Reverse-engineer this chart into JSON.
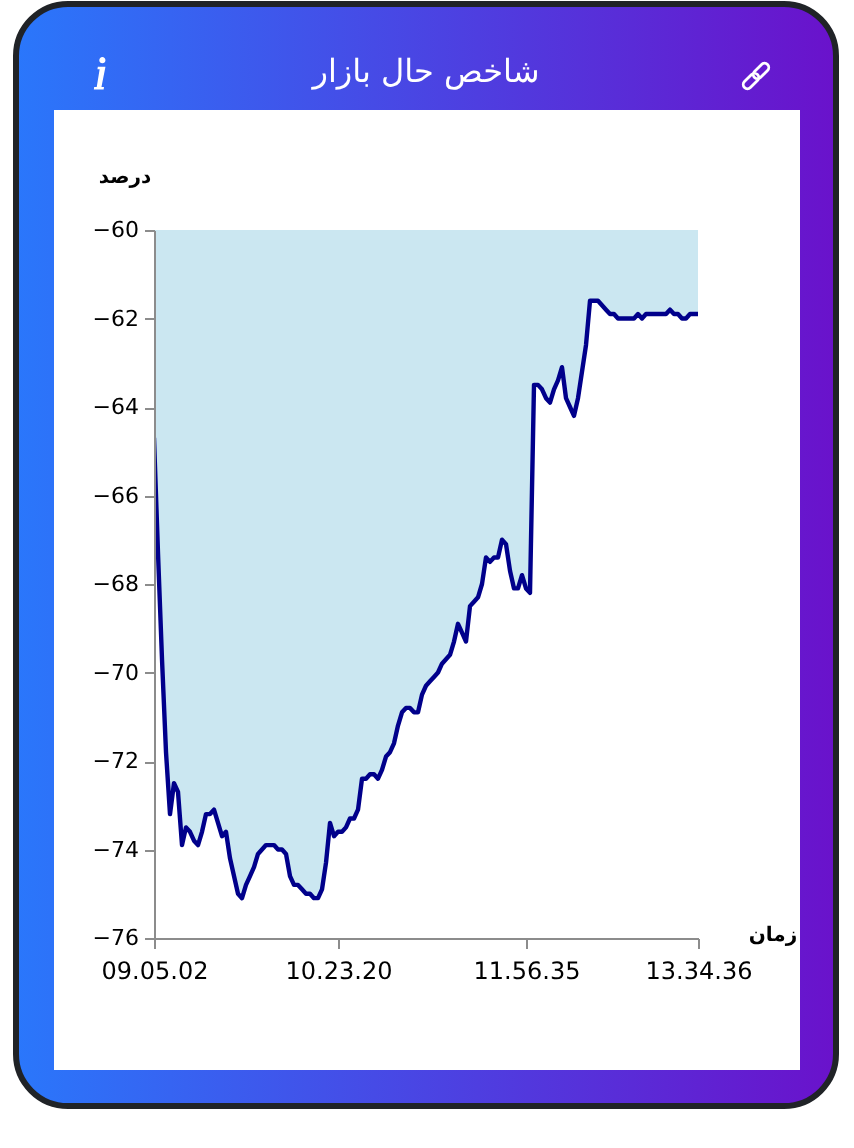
{
  "chart_data": {
    "type": "line",
    "title": "شاخص حال بازار",
    "xlabel": "زمان",
    "ylabel": "درصد",
    "categories": [
      "09.05.02",
      null,
      null,
      null,
      null,
      null,
      null,
      null,
      null,
      null,
      null,
      null,
      null,
      null,
      null,
      null,
      null,
      null,
      null,
      null,
      null,
      null,
      null,
      null,
      null,
      null,
      null,
      null,
      null,
      null,
      null,
      null,
      null,
      null,
      null,
      null,
      null,
      null,
      null,
      null,
      null,
      null,
      null,
      null,
      null,
      null,
      "10.23.20",
      null,
      null,
      null,
      null,
      null,
      null,
      null,
      null,
      null,
      null,
      null,
      null,
      null,
      null,
      null,
      null,
      null,
      null,
      null,
      null,
      null,
      null,
      null,
      null,
      null,
      null,
      null,
      null,
      null,
      null,
      null,
      null,
      null,
      null,
      null,
      null,
      null,
      null,
      null,
      null,
      null,
      null,
      null,
      null,
      null,
      null,
      "11.56.35",
      null,
      null,
      null,
      null,
      null,
      null,
      null,
      null,
      null,
      null,
      null,
      null,
      null,
      null,
      null,
      null,
      null,
      null,
      null,
      null,
      null,
      null,
      null,
      null,
      null,
      null,
      null,
      null,
      null,
      null,
      null,
      null,
      null,
      null,
      null,
      null,
      null,
      null,
      null,
      null,
      null,
      null,
      "13.34.36"
    ],
    "series": [
      {
        "color": "#00008b",
        "values": [
          -64.7,
          -67.3,
          -69.7,
          -71.8,
          -73.2,
          -72.5,
          -72.7,
          -73.9,
          -73.5,
          -73.6,
          -73.8,
          -73.9,
          -73.6,
          -73.2,
          -73.2,
          -73.1,
          -73.4,
          -73.7,
          -73.6,
          -74.2,
          -74.6,
          -75.0,
          -75.1,
          -74.8,
          -74.6,
          -74.4,
          -74.1,
          -74.0,
          -73.9,
          -73.9,
          -73.9,
          -74.0,
          -74.0,
          -74.1,
          -74.6,
          -74.8,
          -74.8,
          -74.9,
          -75.0,
          -75.0,
          -75.1,
          -75.1,
          -74.9,
          -74.3,
          -73.4,
          -73.7,
          -73.6,
          -73.6,
          -73.5,
          -73.3,
          -73.3,
          -73.1,
          -72.4,
          -72.4,
          -72.3,
          -72.3,
          -72.4,
          -72.2,
          -71.9,
          -71.8,
          -71.6,
          -71.2,
          -70.9,
          -70.8,
          -70.8,
          -70.9,
          -70.9,
          -70.5,
          -70.3,
          -70.2,
          -70.1,
          -70.0,
          -69.8,
          -69.7,
          -69.6,
          -69.3,
          -68.9,
          -69.1,
          -69.3,
          -68.5,
          -68.4,
          -68.3,
          -68.0,
          -67.4,
          -67.5,
          -67.4,
          -67.4,
          -67.0,
          -67.1,
          -67.7,
          -68.1,
          -68.1,
          -67.8,
          -68.1,
          -68.2,
          -63.5,
          -63.5,
          -63.6,
          -63.8,
          -63.9,
          -63.6,
          -63.4,
          -63.1,
          -63.8,
          -64.0,
          -64.2,
          -63.8,
          -63.2,
          -62.6,
          -61.6,
          -61.6,
          -61.6,
          -61.7,
          -61.8,
          -61.9,
          -61.9,
          -62.0,
          -62.0,
          -62.0,
          -62.0,
          -62.0,
          -61.9,
          -62.0,
          -61.9,
          -61.9,
          -61.9,
          -61.9,
          -61.9,
          -61.9,
          -61.8,
          -61.9,
          -61.9,
          -62.0,
          -62.0,
          -61.9,
          -61.9,
          -61.9
        ],
        "lower": [
          -64.7,
          -67.3,
          -69.7,
          -71.8,
          -73.2,
          -72.5,
          -72.7,
          -73.9,
          -73.5,
          -73.6,
          -73.8,
          -73.9,
          -73.6,
          -73.2,
          -73.2,
          -73.1,
          -73.4,
          -73.7,
          -73.6,
          -74.2,
          -74.6,
          -75.0,
          -75.1,
          -74.8,
          -74.6,
          -74.4,
          -74.1,
          -74.0,
          -73.9,
          -73.9,
          -73.9,
          -74.0,
          -74.0,
          -74.1,
          -74.6,
          -74.8,
          -74.8,
          -74.9,
          -75.0,
          -75.0,
          -75.1,
          -75.1,
          -74.9,
          -74.3,
          -73.4,
          -73.7,
          -73.6,
          -73.6,
          -73.5,
          -73.3,
          -73.3,
          -73.1,
          -72.4,
          -72.4,
          -72.3,
          -72.3,
          -72.4,
          -72.2,
          -71.9,
          -71.8,
          -71.6,
          -71.2,
          -70.9,
          -70.8,
          -70.8,
          -70.9,
          -70.9,
          -70.5,
          -70.3,
          -70.2,
          -70.1,
          -70.0,
          -69.8,
          -69.7,
          -69.6,
          -69.3,
          -68.9,
          -69.1,
          -69.3,
          -68.5,
          -68.4,
          -68.3,
          -68.0,
          -67.4,
          -67.5,
          -67.4,
          -67.4,
          -67.0,
          -67.1,
          -67.7,
          -68.1,
          -68.1,
          -67.8,
          -68.1,
          -68.2,
          -63.5,
          -63.5,
          -63.6,
          -63.8,
          -63.9,
          -63.6,
          -63.4,
          -63.1,
          -63.8,
          -64.0,
          -64.2,
          -63.8,
          -63.2,
          -62.6,
          -61.6,
          -61.6,
          -61.6,
          -61.7,
          -61.8,
          -61.9,
          -61.9,
          -62.0,
          -62.0,
          -62.0,
          -62.0,
          -62.0,
          -61.9,
          -62.0,
          -61.9,
          -61.9,
          -61.9,
          -61.9,
          -61.9,
          -61.9,
          -61.8,
          -61.9,
          -61.9,
          -62.0,
          -62.0,
          -61.9,
          -61.9,
          -61.9
        ],
        "upper": [
          -60,
          -60,
          -60,
          -60,
          -60,
          -60,
          -60,
          -60,
          -60,
          -60,
          -60,
          -60,
          -60,
          -60,
          -60,
          -60,
          -60,
          -60,
          -60,
          -60,
          -60,
          -60,
          -60,
          -60,
          -60,
          -60,
          -60,
          -60,
          -60,
          -60,
          -60,
          -60,
          -60,
          -60,
          -60,
          -60,
          -60,
          -60,
          -60,
          -60,
          -60,
          -60,
          -60,
          -60,
          -60,
          -60,
          -60,
          -60,
          -60,
          -60,
          -60,
          -60,
          -60,
          -60,
          -60,
          -60,
          -60,
          -60,
          -60,
          -60,
          -60,
          -60,
          -60,
          -60,
          -60,
          -60,
          -60,
          -60,
          -60,
          -60,
          -60,
          -60,
          -60,
          -60,
          -60,
          -60,
          -60,
          -60,
          -60,
          -60,
          -60,
          -60,
          -60,
          -60,
          -60,
          -60,
          -60,
          -60,
          -60,
          -60,
          -60,
          -60,
          -60,
          -60,
          -60,
          -60,
          -60,
          -60,
          -60,
          -60,
          -60,
          -60,
          -60,
          -60,
          -60,
          -60,
          -60,
          -60,
          -60,
          -60,
          -60,
          -60,
          -60,
          -60,
          -60,
          -60,
          -60,
          -60,
          -60,
          -60,
          -60,
          -60,
          -60,
          -60,
          -60,
          -60,
          -60,
          -60,
          -60,
          -60,
          -60,
          -60,
          -60,
          -60,
          -60,
          -60,
          -60
        ]
      }
    ],
    "ylim": [
      -76,
      -60
    ],
    "yticks": [
      -60,
      -62,
      -64,
      -66,
      -68,
      -70,
      -72,
      -74,
      -76
    ]
  }
}
